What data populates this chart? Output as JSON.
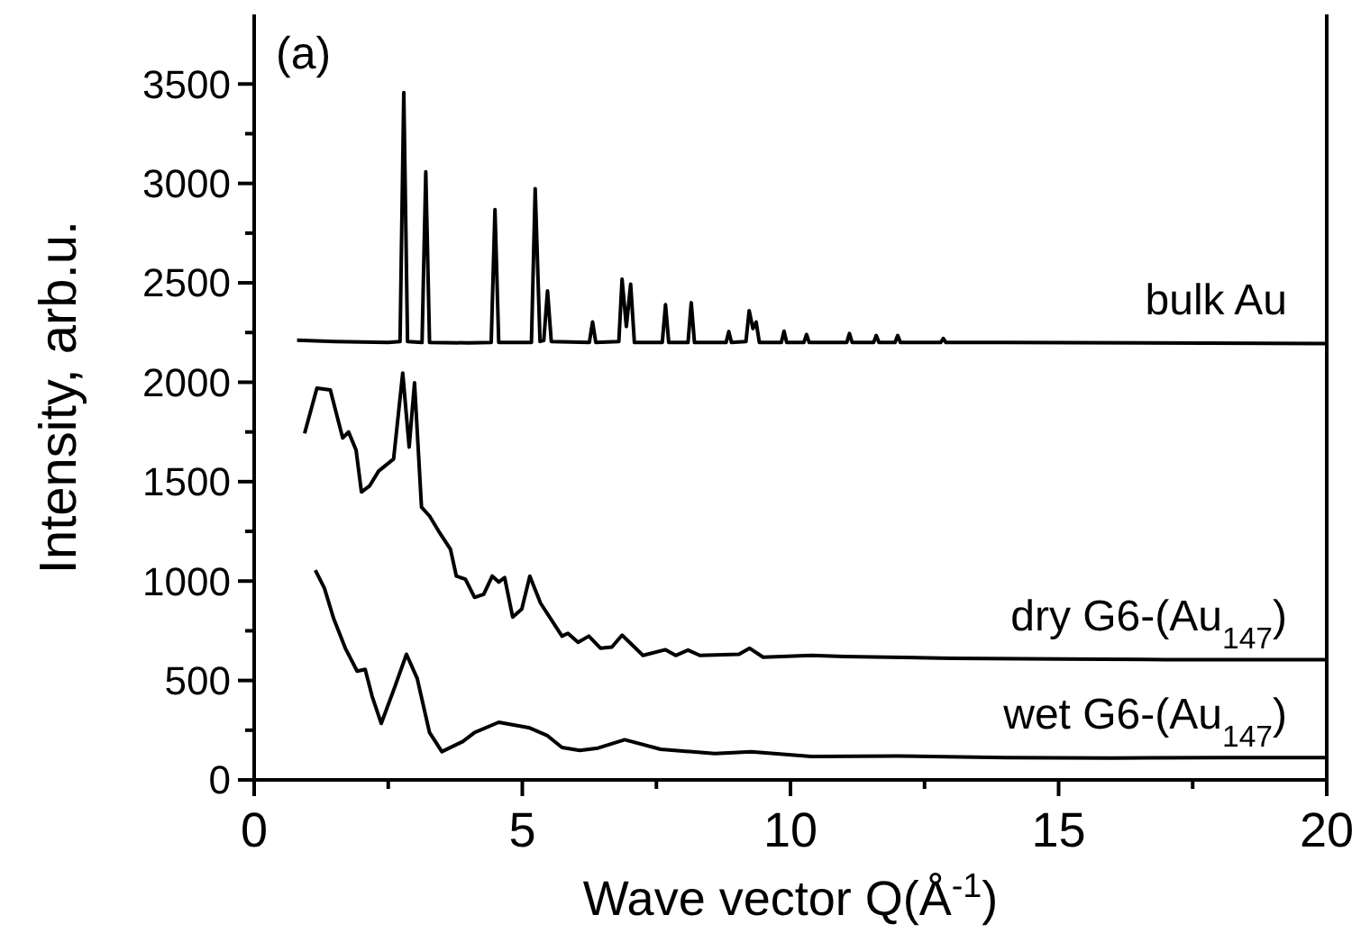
{
  "chart_data": {
    "type": "line",
    "xlabel": "Wave vector Q(Å$^{-1}$)",
    "ylabel": "Intensity, arb.u.",
    "annotations": [
      "(a)"
    ],
    "xlim": [
      0,
      20
    ],
    "ylim": [
      0,
      3850
    ],
    "xticks": [
      0,
      {
        "value": 2.5,
        "label": null
      },
      5,
      {
        "value": 7.5,
        "label": null
      },
      10,
      {
        "value": 12.5,
        "label": null
      },
      15,
      {
        "value": 17.5,
        "label": null
      },
      20
    ],
    "yticks": [
      0,
      {
        "value": 250,
        "label": null
      },
      500,
      {
        "value": 750,
        "label": null
      },
      1000,
      {
        "value": 1250,
        "label": null
      },
      1500,
      {
        "value": 1750,
        "label": null
      },
      2000,
      {
        "value": 2250,
        "label": null
      },
      2500,
      {
        "value": 2750,
        "label": null
      },
      3000,
      {
        "value": 3250,
        "label": null
      },
      3500
    ],
    "series": [
      {
        "name": "bulk Au",
        "color": "#000000",
        "x": [
          0.8,
          1.5,
          2.5,
          2.72,
          2.79,
          2.86,
          3.13,
          3.2,
          3.27,
          4.0,
          4.42,
          4.49,
          4.56,
          5.17,
          5.24,
          5.33,
          5.4,
          5.47,
          5.54,
          6.25,
          6.31,
          6.37,
          6.8,
          6.86,
          6.94,
          7.02,
          7.09,
          7.61,
          7.67,
          7.73,
          8.09,
          8.15,
          8.21,
          8.8,
          8.85,
          8.9,
          9.17,
          9.23,
          9.3,
          9.36,
          9.42,
          9.83,
          9.88,
          9.93,
          10.25,
          10.3,
          10.35,
          11.05,
          11.1,
          11.15,
          11.55,
          11.6,
          11.65,
          11.95,
          12.0,
          12.05,
          12.8,
          12.85,
          12.9,
          14,
          20
        ],
        "values": [
          2212,
          2205,
          2200,
          2205,
          3457,
          2205,
          2200,
          3058,
          2200,
          2198,
          2200,
          2868,
          2200,
          2200,
          2974,
          2205,
          2210,
          2460,
          2205,
          2200,
          2303,
          2200,
          2205,
          2518,
          2280,
          2493,
          2200,
          2200,
          2390,
          2200,
          2200,
          2400,
          2200,
          2200,
          2255,
          2200,
          2205,
          2360,
          2270,
          2303,
          2200,
          2200,
          2257,
          2200,
          2200,
          2240,
          2200,
          2200,
          2245,
          2200,
          2200,
          2235,
          2200,
          2200,
          2235,
          2200,
          2200,
          2220,
          2200,
          2200,
          2195
        ]
      },
      {
        "name": "dry G6-(Au$_{147}$)",
        "color": "#000000",
        "x": [
          0.94,
          1.17,
          1.42,
          1.65,
          1.76,
          1.9,
          2.0,
          2.15,
          2.32,
          2.6,
          2.77,
          2.89,
          2.99,
          3.12,
          3.27,
          3.44,
          3.66,
          3.77,
          3.94,
          4.11,
          4.28,
          4.44,
          4.56,
          4.67,
          4.82,
          4.99,
          5.14,
          5.34,
          5.74,
          5.85,
          6.04,
          6.24,
          6.46,
          6.67,
          6.86,
          7.25,
          7.67,
          7.86,
          8.09,
          8.31,
          9.04,
          9.24,
          9.49,
          10.39,
          11,
          13,
          15,
          17,
          20
        ],
        "values": [
          1743,
          1970,
          1961,
          1720,
          1750,
          1659,
          1448,
          1478,
          1553,
          1614,
          2046,
          1674,
          1997,
          1372,
          1327,
          1251,
          1160,
          1025,
          1009,
          918,
          934,
          1025,
          995,
          1018,
          819,
          859,
          1025,
          889,
          723,
          737,
          692,
          723,
          662,
          668,
          728,
          626,
          655,
          626,
          653,
          626,
          632,
          662,
          617,
          626,
          620,
          612,
          608,
          605,
          605
        ]
      },
      {
        "name": "wet G6-(Au$_{147}$)",
        "color": "#000000",
        "x": [
          1.14,
          1.31,
          1.48,
          1.7,
          1.92,
          2.07,
          2.2,
          2.37,
          2.6,
          2.84,
          3.04,
          3.27,
          3.5,
          3.89,
          4.11,
          4.56,
          5.12,
          5.46,
          5.74,
          6.07,
          6.41,
          6.91,
          7.58,
          8.59,
          9.27,
          10.39,
          12,
          14,
          16,
          18,
          20
        ],
        "values": [
          1055,
          964,
          813,
          662,
          547,
          556,
          420,
          284,
          451,
          632,
          510,
          238,
          142,
          193,
          238,
          290,
          263,
          224,
          163,
          148,
          160,
          202,
          154,
          133,
          142,
          118,
          120,
          112,
          110,
          112,
          112
        ]
      }
    ]
  }
}
